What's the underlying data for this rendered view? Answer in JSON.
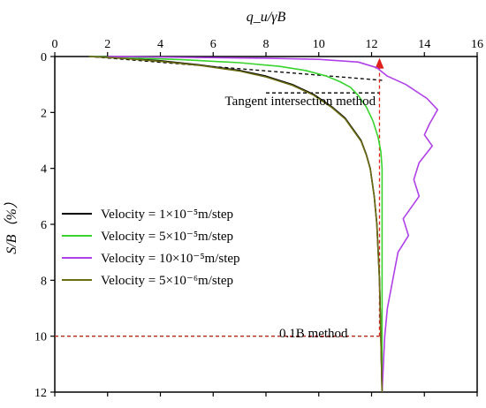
{
  "chart_data": {
    "type": "line",
    "xlabel": "q_u/γB",
    "ylabel": "S/B（%）",
    "xlim": [
      0,
      16
    ],
    "ylim": [
      0,
      12
    ],
    "y_inverted": true,
    "x_axis_position": "top",
    "x_ticks": [
      0,
      2,
      4,
      6,
      8,
      10,
      12,
      14,
      16
    ],
    "y_ticks": [
      0,
      2,
      4,
      6,
      8,
      10,
      12
    ],
    "grid": false,
    "legend_placement": "center-left",
    "series": [
      {
        "name": "Velocity = 1×10⁻⁵m/step",
        "color": "#000000",
        "x": [
          1.3,
          2.5,
          4.0,
          5.5,
          7.0,
          8.0,
          9.0,
          9.8,
          10.5,
          11.0,
          11.3,
          11.6,
          11.8,
          11.95,
          12.1,
          12.2,
          12.3,
          12.35,
          12.4
        ],
        "y": [
          0,
          0.05,
          0.15,
          0.3,
          0.5,
          0.7,
          1.0,
          1.35,
          1.8,
          2.2,
          2.6,
          3.0,
          3.5,
          4.0,
          5.0,
          6.0,
          8.0,
          10.0,
          12.0
        ]
      },
      {
        "name": "Velocity = 5×10⁻⁵m/step",
        "color": "#39d32e",
        "x": [
          1.3,
          3.0,
          5.0,
          7.0,
          8.5,
          9.5,
          10.3,
          10.8,
          11.2,
          11.5,
          11.8,
          12.05,
          12.25,
          12.35,
          12.4,
          12.4,
          12.4,
          12.4
        ],
        "y": [
          0,
          0.05,
          0.12,
          0.22,
          0.35,
          0.5,
          0.7,
          0.9,
          1.1,
          1.4,
          1.8,
          2.3,
          2.9,
          3.4,
          4.0,
          6.0,
          10.0,
          12.0
        ]
      },
      {
        "name": "Velocity = 10×10⁻⁵m/step",
        "color": "#b040e8",
        "x": [
          2.0,
          5.0,
          8.0,
          10.0,
          11.5,
          12.2,
          12.6,
          13.3,
          14.1,
          14.5,
          14.2,
          14.0,
          14.3,
          13.8,
          13.6,
          13.8,
          13.2,
          13.4,
          13.0,
          12.8,
          12.6,
          12.5,
          12.45,
          12.4
        ],
        "y": [
          0,
          0.03,
          0.06,
          0.1,
          0.2,
          0.4,
          0.7,
          1.0,
          1.5,
          1.9,
          2.4,
          2.8,
          3.2,
          3.8,
          4.4,
          5.0,
          5.8,
          6.4,
          7.0,
          8.0,
          9.0,
          10.0,
          11.0,
          12.0
        ]
      },
      {
        "name": "Velocity = 5×10⁻⁶m/step",
        "color": "#6b6b12",
        "x": [
          1.3,
          2.5,
          4.0,
          5.5,
          7.0,
          8.0,
          9.0,
          9.8,
          10.5,
          11.0,
          11.3,
          11.6,
          11.8,
          11.95,
          12.1,
          12.2,
          12.3,
          12.35,
          12.4
        ],
        "y": [
          0,
          0.06,
          0.17,
          0.32,
          0.52,
          0.73,
          1.03,
          1.38,
          1.83,
          2.23,
          2.63,
          3.03,
          3.52,
          4.02,
          5.0,
          6.0,
          8.0,
          10.0,
          12.0
        ]
      }
    ],
    "annotations": [
      {
        "text": "Tangent intersection method",
        "x": 9.3,
        "y": 1.3
      },
      {
        "text": "0.1B  method",
        "x": 9.8,
        "y": 9.6
      }
    ],
    "reference_lines": [
      {
        "kind": "tangent",
        "color": "#000000",
        "style": "dashed",
        "x": [
          1.3,
          12.4
        ],
        "y": [
          0.0,
          0.85
        ]
      },
      {
        "kind": "tangent",
        "color": "#000000",
        "style": "dashed",
        "x": [
          8.0,
          12.3
        ],
        "y": [
          1.3,
          1.3
        ]
      },
      {
        "kind": "horizontal",
        "color": "#b52a1a",
        "style": "dashed",
        "x": [
          0,
          12.3
        ],
        "y": [
          10,
          10
        ]
      },
      {
        "kind": "vertical-arrow",
        "color": "#e0201a",
        "style": "dashed",
        "x": [
          12.3,
          12.3
        ],
        "y": [
          10,
          0.05
        ]
      }
    ]
  }
}
